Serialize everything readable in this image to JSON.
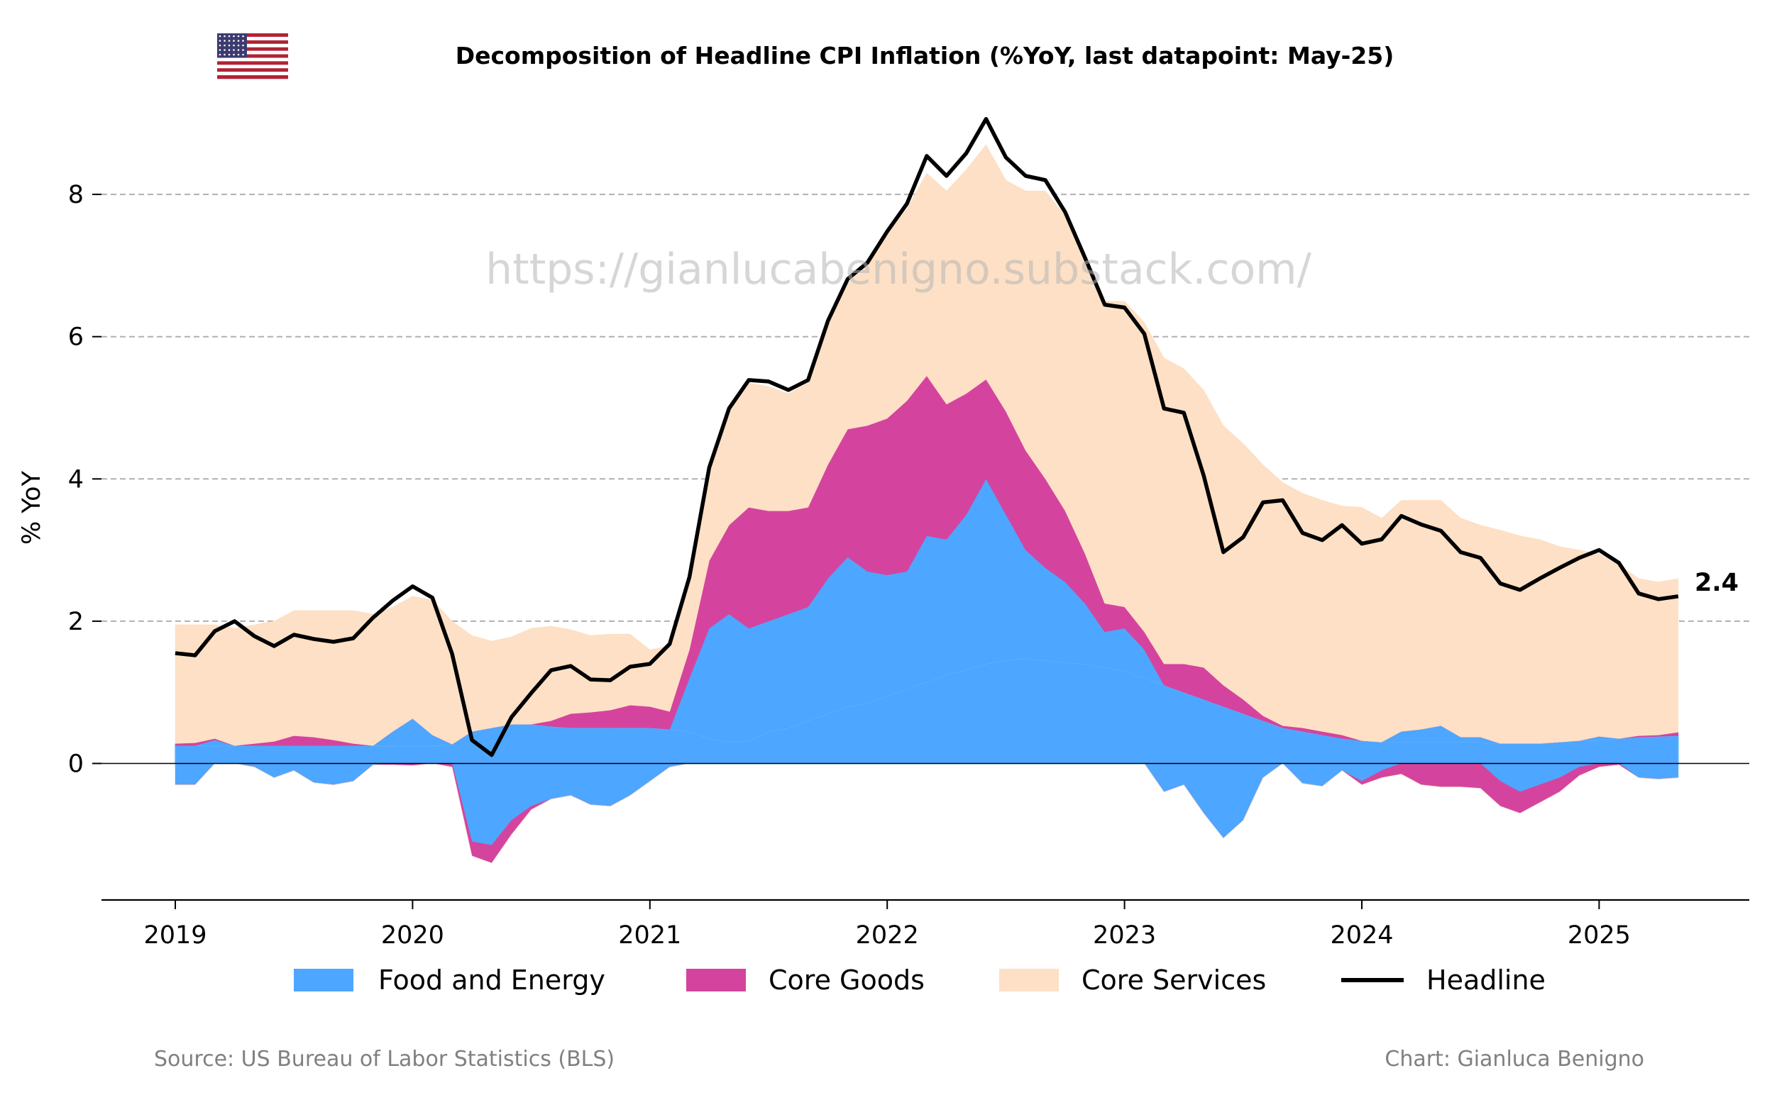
{
  "chart_data": {
    "type": "area",
    "stacked": true,
    "title": "Decomposition of Headline CPI Inflation (%YoY, last datapoint: May-25)",
    "ylabel": "% YoY",
    "xlabel": "",
    "ylim": [
      -1.9,
      9.2
    ],
    "yticks": [
      0,
      2,
      4,
      6,
      8
    ],
    "xticks": [
      "2019",
      "2020",
      "2021",
      "2022",
      "2023",
      "2024",
      "2025"
    ],
    "grid": "horizontal dashed",
    "legend_position": "bottom",
    "x_start": "2019-01",
    "x_end": "2025-05",
    "frequency": "monthly",
    "colors": {
      "food_energy": "#4da6ff",
      "core_goods": "#d4449e",
      "core_services": "#fde0c5",
      "headline": "#000000"
    },
    "legend": [
      "Food and Energy",
      "Core Goods",
      "Core Services",
      "Headline"
    ],
    "series": [
      {
        "group": "Food and Energy",
        "component": "food",
        "color": "#4da6ff",
        "values": [
          0.25,
          0.25,
          0.25,
          0.25,
          0.25,
          0.25,
          0.25,
          0.25,
          0.25,
          0.25,
          0.25,
          0.25,
          0.25,
          0.25,
          0.27,
          0.45,
          0.5,
          0.55,
          0.55,
          0.52,
          0.5,
          0.5,
          0.5,
          0.5,
          0.5,
          0.48,
          0.45,
          0.35,
          0.3,
          0.32,
          0.45,
          0.5,
          0.6,
          0.7,
          0.8,
          0.85,
          0.95,
          1.05,
          1.15,
          1.25,
          1.32,
          1.4,
          1.45,
          1.48,
          1.45,
          1.42,
          1.4,
          1.35,
          1.3,
          1.2,
          1.1,
          1.0,
          0.9,
          0.8,
          0.7,
          0.6,
          0.5,
          0.45,
          0.4,
          0.35,
          0.32,
          0.3,
          0.3,
          0.3,
          0.3,
          0.3,
          0.3,
          0.28,
          0.28,
          0.28,
          0.3,
          0.32,
          0.33,
          0.35,
          0.37,
          0.38,
          0.39
        ]
      },
      {
        "group": "Food and Energy",
        "component": "energy",
        "color": "#4da6ff",
        "values": [
          -0.3,
          -0.3,
          0.08,
          0.0,
          -0.05,
          -0.2,
          -0.1,
          -0.27,
          -0.3,
          -0.25,
          -0.02,
          0.2,
          0.38,
          0.15,
          0.0,
          -1.1,
          -1.15,
          -0.8,
          -0.6,
          -0.5,
          -0.45,
          -0.58,
          -0.6,
          -0.45,
          -0.25,
          -0.05,
          0.75,
          1.55,
          1.8,
          1.58,
          1.55,
          1.6,
          1.6,
          1.9,
          2.1,
          1.85,
          1.7,
          1.65,
          2.05,
          1.9,
          2.18,
          2.6,
          2.05,
          1.52,
          1.3,
          1.13,
          0.85,
          0.5,
          0.6,
          0.4,
          -0.4,
          -0.3,
          -0.7,
          -1.05,
          -0.8,
          -0.2,
          0.0,
          -0.28,
          -0.32,
          -0.1,
          -0.25,
          -0.1,
          0.15,
          0.18,
          0.23,
          0.07,
          0.07,
          -0.25,
          -0.4,
          -0.3,
          -0.2,
          -0.05,
          0.05,
          0.0,
          -0.2,
          -0.22,
          -0.2
        ]
      },
      {
        "name": "Core Goods",
        "color": "#d4449e",
        "values": [
          0.03,
          0.04,
          0.02,
          0.0,
          0.03,
          0.06,
          0.14,
          0.12,
          0.08,
          0.03,
          0.0,
          -0.02,
          -0.03,
          0.0,
          -0.05,
          -0.2,
          -0.25,
          -0.2,
          -0.05,
          0.08,
          0.2,
          0.22,
          0.25,
          0.32,
          0.3,
          0.25,
          0.4,
          0.95,
          1.25,
          1.7,
          1.55,
          1.45,
          1.4,
          1.6,
          1.8,
          2.05,
          2.2,
          2.4,
          2.25,
          1.9,
          1.7,
          1.4,
          1.45,
          1.4,
          1.25,
          1.0,
          0.7,
          0.4,
          0.3,
          0.25,
          0.3,
          0.4,
          0.45,
          0.3,
          0.2,
          0.07,
          0.03,
          0.05,
          0.05,
          0.05,
          -0.05,
          -0.1,
          -0.15,
          -0.3,
          -0.33,
          -0.33,
          -0.35,
          -0.35,
          -0.3,
          -0.25,
          -0.2,
          -0.12,
          -0.05,
          -0.02,
          0.02,
          0.02,
          0.05
        ]
      },
      {
        "name": "Core Services",
        "color": "#fde0c5",
        "values": [
          1.67,
          1.66,
          1.6,
          1.65,
          1.67,
          1.69,
          1.76,
          1.78,
          1.82,
          1.87,
          1.85,
          1.75,
          1.72,
          1.9,
          1.73,
          1.35,
          1.22,
          1.23,
          1.35,
          1.33,
          1.18,
          1.08,
          1.07,
          1.0,
          0.8,
          0.92,
          1.0,
          1.25,
          1.6,
          1.75,
          1.75,
          1.65,
          1.75,
          1.95,
          2.05,
          2.25,
          2.6,
          2.7,
          2.85,
          3.0,
          3.15,
          3.3,
          3.25,
          3.65,
          4.05,
          4.15,
          4.15,
          4.25,
          4.3,
          4.35,
          4.3,
          4.15,
          3.9,
          3.65,
          3.6,
          3.53,
          3.42,
          3.3,
          3.25,
          3.22,
          3.28,
          3.15,
          3.25,
          3.22,
          3.17,
          3.08,
          2.98,
          3.0,
          2.92,
          2.87,
          2.75,
          2.68,
          2.57,
          2.45,
          2.21,
          2.15,
          2.16
        ]
      },
      {
        "name": "Headline",
        "color": "#000000",
        "values": [
          1.55,
          1.52,
          1.86,
          2.0,
          1.79,
          1.65,
          1.81,
          1.75,
          1.71,
          1.76,
          2.05,
          2.29,
          2.49,
          2.33,
          1.54,
          0.33,
          0.12,
          0.65,
          0.99,
          1.31,
          1.37,
          1.18,
          1.17,
          1.36,
          1.4,
          1.68,
          2.62,
          4.16,
          4.99,
          5.39,
          5.37,
          5.25,
          5.39,
          6.22,
          6.81,
          7.04,
          7.48,
          7.87,
          8.54,
          8.26,
          8.58,
          9.06,
          8.52,
          8.26,
          8.2,
          7.75,
          7.11,
          6.45,
          6.41,
          6.04,
          4.99,
          4.93,
          4.05,
          2.97,
          3.18,
          3.67,
          3.7,
          3.24,
          3.14,
          3.35,
          3.09,
          3.15,
          3.48,
          3.36,
          3.27,
          2.97,
          2.89,
          2.53,
          2.44,
          2.6,
          2.75,
          2.89,
          3.0,
          2.82,
          2.39,
          2.31,
          2.35
        ]
      }
    ],
    "annotations": {
      "last_value_label": "2.4"
    },
    "watermark": "https://gianlucabenigno.substack.com/",
    "source": "Source: US Bureau of Labor Statistics (BLS)",
    "credit": "Chart: Gianluca Benigno",
    "flag": "us-flag"
  }
}
